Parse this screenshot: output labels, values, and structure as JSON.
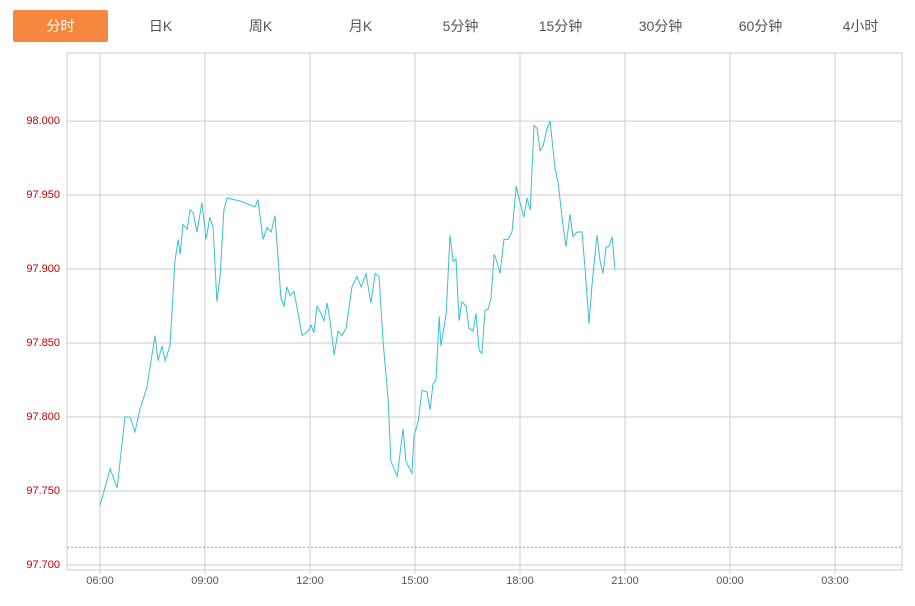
{
  "tabs": [
    {
      "label": "分时",
      "active": true
    },
    {
      "label": "日K"
    },
    {
      "label": "周K"
    },
    {
      "label": "月K"
    },
    {
      "label": "5分钟"
    },
    {
      "label": "15分钟"
    },
    {
      "label": "30分钟"
    },
    {
      "label": "60分钟"
    },
    {
      "label": "4小时"
    }
  ],
  "chart_data": {
    "type": "line",
    "color": "#3bbfcf",
    "grid": true,
    "x": [
      6.0,
      6.29,
      6.49,
      6.71,
      6.86,
      7.0,
      7.14,
      7.34,
      7.57,
      7.66,
      7.77,
      7.86,
      8.0,
      8.14,
      8.23,
      8.29,
      8.37,
      8.49,
      8.57,
      8.66,
      8.77,
      8.91,
      9.03,
      9.14,
      9.23,
      9.34,
      9.43,
      9.54,
      9.63,
      10.0,
      10.43,
      10.51,
      10.66,
      10.77,
      10.89,
      11.0,
      11.17,
      11.26,
      11.34,
      11.43,
      11.54,
      11.66,
      11.77,
      11.94,
      12.03,
      12.11,
      12.2,
      12.31,
      12.4,
      12.49,
      12.57,
      12.69,
      12.8,
      12.91,
      13.03,
      13.2,
      13.34,
      13.46,
      13.6,
      13.74,
      13.86,
      13.97,
      14.09,
      14.23,
      14.31,
      14.49,
      14.66,
      14.74,
      14.91,
      14.97,
      15.09,
      15.2,
      15.34,
      15.43,
      15.51,
      15.6,
      15.69,
      15.74,
      15.89,
      16.0,
      16.09,
      16.17,
      16.26,
      16.34,
      16.46,
      16.54,
      16.66,
      16.74,
      16.83,
      16.91,
      17.0,
      17.09,
      17.17,
      17.26,
      17.34,
      17.43,
      17.54,
      17.66,
      17.77,
      17.89,
      18.0,
      18.11,
      18.2,
      18.29,
      18.4,
      18.49,
      18.57,
      18.66,
      18.77,
      18.86,
      19.0,
      19.09,
      19.2,
      19.31,
      19.43,
      19.51,
      19.63,
      19.77,
      19.86,
      19.97,
      20.06,
      20.2,
      20.29,
      20.37,
      20.46,
      20.54,
      20.63,
      20.71
    ],
    "values": [
      97.74,
      97.765,
      97.752,
      97.8,
      97.8,
      97.79,
      97.805,
      97.82,
      97.855,
      97.838,
      97.848,
      97.838,
      97.848,
      97.905,
      97.92,
      97.91,
      97.93,
      97.927,
      97.94,
      97.938,
      97.925,
      97.945,
      97.92,
      97.935,
      97.928,
      97.878,
      97.895,
      97.94,
      97.948,
      97.946,
      97.942,
      97.947,
      97.92,
      97.928,
      97.925,
      97.936,
      97.88,
      97.875,
      97.888,
      97.882,
      97.885,
      97.87,
      97.855,
      97.858,
      97.862,
      97.857,
      97.875,
      97.87,
      97.865,
      97.877,
      97.865,
      97.842,
      97.858,
      97.855,
      97.86,
      97.888,
      97.895,
      97.888,
      97.897,
      97.877,
      97.897,
      97.895,
      97.85,
      97.812,
      97.77,
      97.76,
      97.792,
      97.77,
      97.762,
      97.787,
      97.797,
      97.818,
      97.817,
      97.805,
      97.822,
      97.825,
      97.868,
      97.848,
      97.87,
      97.923,
      97.905,
      97.907,
      97.865,
      97.878,
      97.875,
      97.86,
      97.858,
      97.87,
      97.845,
      97.843,
      97.872,
      97.873,
      97.88,
      97.91,
      97.905,
      97.897,
      97.92,
      97.92,
      97.925,
      97.956,
      97.945,
      97.935,
      97.948,
      97.94,
      97.997,
      97.995,
      97.98,
      97.983,
      97.995,
      98.0,
      97.968,
      97.958,
      97.935,
      97.915,
      97.937,
      97.922,
      97.925,
      97.925,
      97.9,
      97.863,
      97.89,
      97.923,
      97.905,
      97.897,
      97.915,
      97.915,
      97.922,
      97.9
    ],
    "xlim": [
      5.057,
      28.914
    ],
    "xticks": [
      {
        "value": 6,
        "label": "06:00"
      },
      {
        "value": 9,
        "label": "09:00"
      },
      {
        "value": 12,
        "label": "12:00"
      },
      {
        "value": 15,
        "label": "15:00"
      },
      {
        "value": 18,
        "label": "18:00"
      },
      {
        "value": 21,
        "label": "21:00"
      },
      {
        "value": 24,
        "label": "00:00"
      },
      {
        "value": 27,
        "label": "03:00"
      }
    ],
    "ylim": [
      97.6966,
      98.046
    ],
    "yticks": [
      {
        "value": 97.7,
        "label": "97.700"
      },
      {
        "value": 97.75,
        "label": "97.750"
      },
      {
        "value": 97.8,
        "label": "97.800"
      },
      {
        "value": 97.85,
        "label": "97.850"
      },
      {
        "value": 97.9,
        "label": "97.900"
      },
      {
        "value": 97.95,
        "label": "97.950"
      },
      {
        "value": 98.0,
        "label": "98.000"
      }
    ],
    "hline": {
      "value": 97.712,
      "color": "#f08a4b"
    }
  }
}
